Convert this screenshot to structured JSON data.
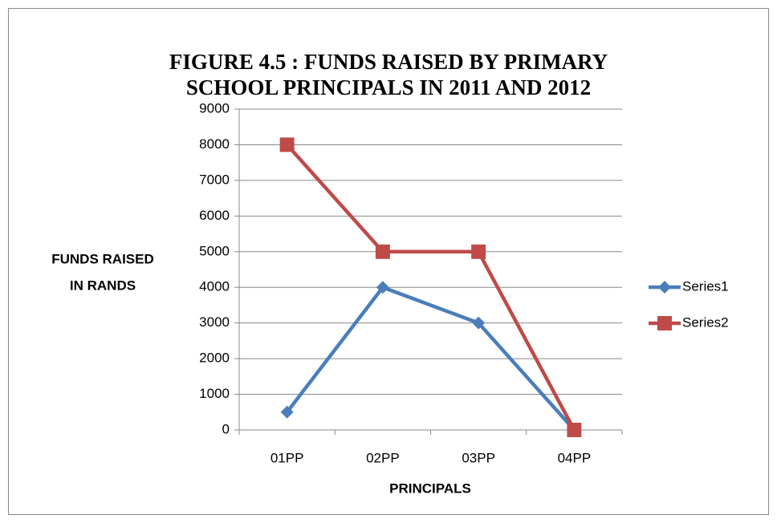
{
  "chart_data": {
    "type": "line",
    "title": [
      "FIGURE 4.5 : FUNDS RAISED BY PRIMARY",
      "SCHOOL PRINCIPALS IN 2011 AND 2012"
    ],
    "ylabel": [
      "FUNDS RAISED",
      "IN RANDS"
    ],
    "xlabel": "PRINCIPALS",
    "categories": [
      "01PP",
      "02PP",
      "03PP",
      "04PP"
    ],
    "series": [
      {
        "name": "Series1",
        "color": "#4a7ebb",
        "marker": "diamond",
        "values": [
          500,
          4000,
          3000,
          0
        ]
      },
      {
        "name": "Series2",
        "color": "#be4b48",
        "marker": "square",
        "values": [
          8000,
          5000,
          5000,
          0
        ]
      }
    ],
    "ylim": [
      0,
      9000
    ],
    "yticks": [
      0,
      1000,
      2000,
      3000,
      4000,
      5000,
      6000,
      7000,
      8000,
      9000
    ],
    "grid": true,
    "legend": "right"
  }
}
